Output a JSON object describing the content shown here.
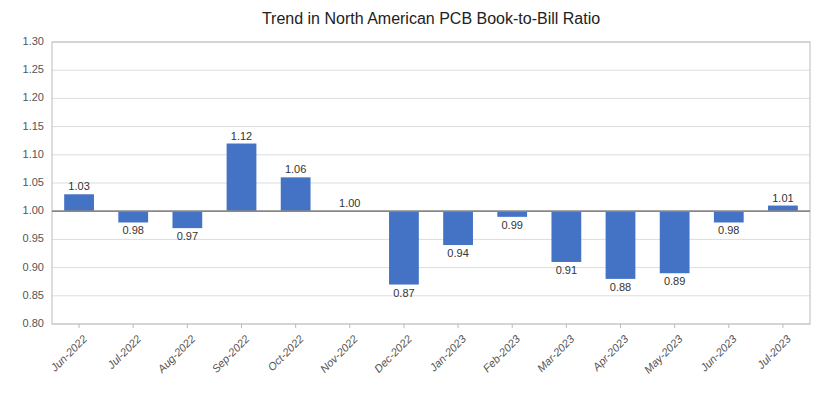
{
  "chart_data": {
    "type": "bar",
    "title": "Trend in North American PCB Book-to-Bill Ratio",
    "categories": [
      "Jun-2022",
      "Jul-2022",
      "Aug-2022",
      "Sep-2022",
      "Oct-2022",
      "Nov-2022",
      "Dec-2022",
      "Jan-2023",
      "Feb-2023",
      "Mar-2023",
      "Apr-2023",
      "May-2023",
      "Jun-2023",
      "Jul-2023"
    ],
    "values": [
      1.03,
      0.98,
      0.97,
      1.12,
      1.06,
      1.0,
      0.87,
      0.94,
      0.99,
      0.91,
      0.88,
      0.89,
      0.98,
      1.01
    ],
    "value_labels": [
      "1.03",
      "0.98",
      "0.97",
      "1.12",
      "1.06",
      "1.00",
      "0.87",
      "0.94",
      "0.99",
      "0.91",
      "0.88",
      "0.89",
      "0.98",
      "1.01"
    ],
    "data_labels": true,
    "baseline": 1.0,
    "color": "#4472C4",
    "ylim": [
      0.8,
      1.3
    ],
    "yticks": [
      {
        "value": 0.8,
        "label": "0.80"
      },
      0.85,
      {
        "value": 0.9,
        "label": "0.90"
      },
      0.95,
      {
        "value": 1.0,
        "label": "1.00"
      },
      1.05,
      {
        "value": 1.1,
        "label": "1.10"
      },
      1.15,
      {
        "value": 1.2,
        "label": "1.20"
      },
      1.25,
      {
        "value": 1.3,
        "label": "1.30"
      }
    ],
    "grid": true
  }
}
